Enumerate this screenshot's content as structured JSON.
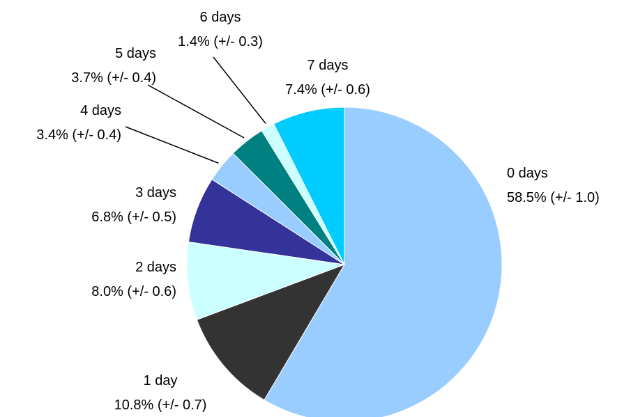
{
  "chart_data": {
    "type": "pie",
    "start": "12 o'clock",
    "direction": "clockwise",
    "slices": [
      {
        "label": "0 days",
        "value": 58.5,
        "text": "58.5% (+/- 1.0)",
        "color": "#99ccff"
      },
      {
        "label": "1 day",
        "value": 10.8,
        "text": "10.8% (+/- 0.7)",
        "color": "#333333"
      },
      {
        "label": "2 days",
        "value": 8.0,
        "text": "8.0% (+/- 0.6)",
        "color": "#ccffff"
      },
      {
        "label": "3 days",
        "value": 6.8,
        "text": "6.8% (+/- 0.5)",
        "color": "#333399"
      },
      {
        "label": "4 days",
        "value": 3.4,
        "text": "3.4% (+/- 0.4)",
        "color": "#99ccff"
      },
      {
        "label": "5 days",
        "value": 3.7,
        "text": "3.7% (+/- 0.4)",
        "color": "#008080"
      },
      {
        "label": "6 days",
        "value": 1.4,
        "text": "1.4% (+/- 0.3)",
        "color": "#ccffff"
      },
      {
        "label": "7 days",
        "value": 7.4,
        "text": "7.4% (+/- 0.6)",
        "color": "#00ccff"
      }
    ]
  }
}
